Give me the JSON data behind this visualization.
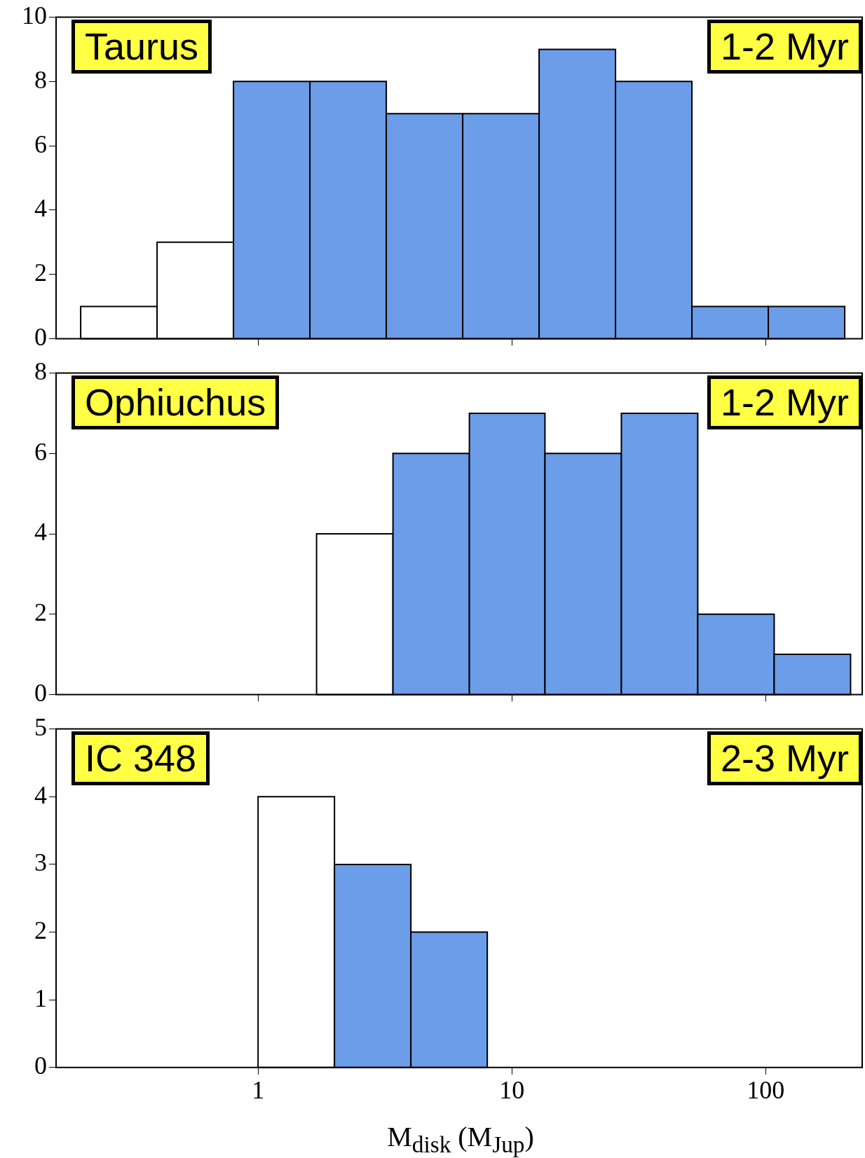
{
  "chart_data": [
    {
      "type": "histogram",
      "bins": [
        0.2,
        0.4,
        0.8,
        1.6,
        3.2,
        6.4,
        12.8,
        25.6,
        51.2,
        102.4,
        204.8
      ],
      "values": [
        1,
        3,
        8,
        8,
        7,
        7,
        9,
        8,
        1,
        1
      ],
      "colors": [
        "#ffffff",
        "#ffffff",
        "#6b9de8",
        "#6b9de8",
        "#6b9de8",
        "#6b9de8",
        "#6b9de8",
        "#6b9de8",
        "#6b9de8",
        "#6b9de8"
      ],
      "log": "x",
      "xlim": [
        0.16,
        240
      ],
      "xticks": [
        {
          "value": 1,
          "label": null
        },
        {
          "value": 10,
          "label": null
        },
        {
          "value": 100,
          "label": null
        }
      ],
      "ylim": [
        0,
        10
      ],
      "yticks": [
        0,
        2,
        4,
        6,
        8,
        10
      ],
      "tick_labels": "y",
      "annotations": [
        "Taurus",
        "1-2 Myr"
      ]
    },
    {
      "type": "histogram",
      "bins": [
        1.7,
        3.4,
        6.8,
        13.5,
        27,
        54,
        108,
        216
      ],
      "values": [
        4,
        6,
        7,
        6,
        7,
        2,
        1
      ],
      "colors": [
        "#ffffff",
        "#6b9de8",
        "#6b9de8",
        "#6b9de8",
        "#6b9de8",
        "#6b9de8",
        "#6b9de8"
      ],
      "log": "x",
      "xlim": [
        0.16,
        240
      ],
      "xticks": [
        {
          "value": 1,
          "label": null
        },
        {
          "value": 10,
          "label": null
        },
        {
          "value": 100,
          "label": null
        }
      ],
      "ylim": [
        0,
        8
      ],
      "yticks": [
        0,
        2,
        4,
        6,
        8
      ],
      "tick_labels": "y",
      "annotations": [
        "Ophiuchus",
        "1-2 Myr"
      ]
    },
    {
      "type": "histogram",
      "bins": [
        1,
        2,
        4,
        8
      ],
      "values": [
        4,
        3,
        2
      ],
      "colors": [
        "#ffffff",
        "#6b9de8",
        "#6b9de8"
      ],
      "log": "x",
      "xlim": [
        0.16,
        240
      ],
      "xticks": [
        1,
        10,
        100
      ],
      "ylim": [
        0,
        5
      ],
      "yticks": [
        0,
        1,
        2,
        3,
        4,
        5
      ],
      "xlabel": "M$_{disk}$ (M$_{Jup}$)",
      "annotations": [
        "IC 348",
        "2-3 Myr"
      ]
    }
  ]
}
